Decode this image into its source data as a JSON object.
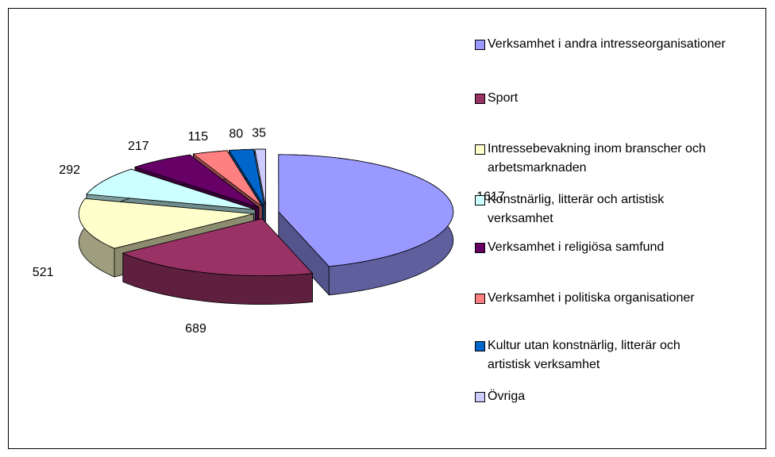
{
  "chart_data": {
    "type": "pie",
    "style": "3d-exploded",
    "categories": [
      "Verksamhet i andra intresseorganisationer",
      "Sport",
      "Intressebevakning inom branscher och arbetsmarknaden",
      "Konstnärlig, litterär och artistisk verksamhet",
      "Verksamhet i religiösa samfund",
      "Verksamhet i politiska organisationer",
      "Kultur utan konstnärlig, litterär och artistisk verksamhet",
      "Övriga"
    ],
    "values": [
      1617,
      689,
      521,
      292,
      217,
      115,
      80,
      35
    ],
    "colors": [
      "#9999FF",
      "#993366",
      "#FFFFCC",
      "#CCFFFF",
      "#660066",
      "#FF8080",
      "#0066CC",
      "#CCCCFF"
    ],
    "legend": "right"
  }
}
